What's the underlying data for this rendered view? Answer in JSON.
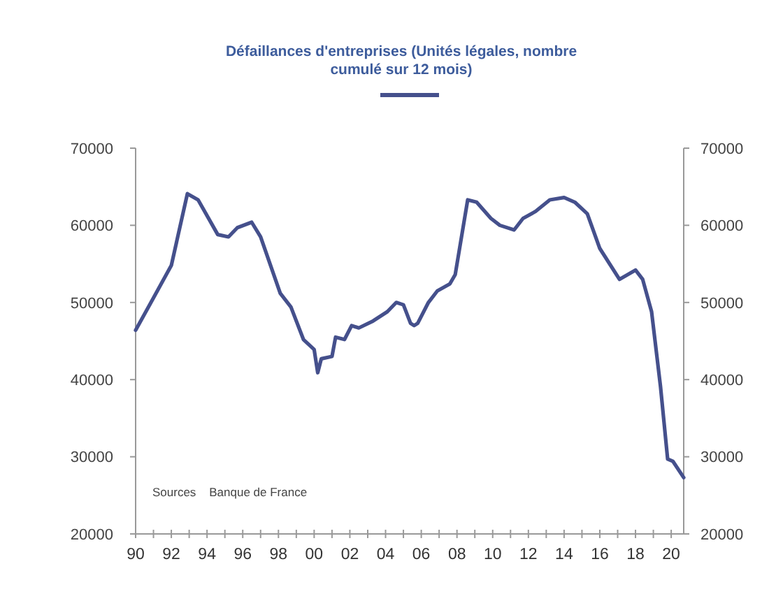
{
  "chart_data": {
    "type": "line",
    "title": "Défaillances  d'entreprises (Unités légales, nombre cumulé  sur 12 mois)",
    "annotations": [
      "Sources    Banque de France"
    ],
    "grid": false,
    "series": [
      {
        "color": "#45508c",
        "x": [
          1990,
          1991,
          1992,
          1992.9,
          1993.5,
          1994.6,
          1995.2,
          1995.7,
          1996.5,
          1997,
          1998.1,
          1998.7,
          1999.4,
          2000,
          2000.2,
          2000.4,
          2001,
          2001.2,
          2001.7,
          2002.1,
          2002.5,
          2003.3,
          2004.1,
          2004.6,
          2005,
          2005.4,
          2005.6,
          2005.8,
          2006.4,
          2006.9,
          2007.6,
          2007.9,
          2008.6,
          2009.1,
          2009.9,
          2010.4,
          2011.2,
          2011.7,
          2012.4,
          2013.2,
          2014,
          2014.6,
          2015.3,
          2016,
          2017.1,
          2018,
          2018.4,
          2018.9,
          2019.4,
          2019.8,
          2020.1,
          2020.7
        ],
        "values": [
          46400,
          50600,
          54800,
          64100,
          63300,
          58800,
          58500,
          59700,
          60400,
          58500,
          51200,
          49400,
          45200,
          43900,
          40900,
          42700,
          43000,
          45500,
          45200,
          47000,
          46700,
          47600,
          48800,
          50000,
          49700,
          47300,
          47000,
          47300,
          50000,
          51500,
          52400,
          53600,
          63300,
          63000,
          60900,
          60000,
          59400,
          60900,
          61800,
          63300,
          63600,
          63000,
          61500,
          57000,
          53000,
          54200,
          53000,
          48800,
          39100,
          29700,
          29400,
          27300
        ]
      }
    ],
    "xlim": [
      1990,
      2020.7
    ],
    "xticks": [
      {
        "value": 1990,
        "label": "90"
      },
      {
        "value": 1991,
        "label": null
      },
      {
        "value": 1992,
        "label": "92"
      },
      {
        "value": 1993,
        "label": null
      },
      {
        "value": 1994,
        "label": "94"
      },
      {
        "value": 1995,
        "label": null
      },
      {
        "value": 1996,
        "label": "96"
      },
      {
        "value": 1997,
        "label": null
      },
      {
        "value": 1998,
        "label": "98"
      },
      {
        "value": 1999,
        "label": null
      },
      {
        "value": 2000,
        "label": "00"
      },
      {
        "value": 2001,
        "label": null
      },
      {
        "value": 2002,
        "label": "02"
      },
      {
        "value": 2003,
        "label": null
      },
      {
        "value": 2004,
        "label": "04"
      },
      {
        "value": 2005,
        "label": null
      },
      {
        "value": 2006,
        "label": "06"
      },
      {
        "value": 2007,
        "label": null
      },
      {
        "value": 2008,
        "label": "08"
      },
      {
        "value": 2009,
        "label": null
      },
      {
        "value": 2010,
        "label": "10"
      },
      {
        "value": 2011,
        "label": null
      },
      {
        "value": 2012,
        "label": "12"
      },
      {
        "value": 2013,
        "label": null
      },
      {
        "value": 2014,
        "label": "14"
      },
      {
        "value": 2015,
        "label": null
      },
      {
        "value": 2016,
        "label": "16"
      },
      {
        "value": 2017,
        "label": null
      },
      {
        "value": 2018,
        "label": "18"
      },
      {
        "value": 2019,
        "label": null
      },
      {
        "value": 2020,
        "label": "20"
      }
    ],
    "ylim": [
      20000,
      70000
    ],
    "yticks": [
      20000,
      30000,
      40000,
      50000,
      60000,
      70000
    ],
    "y2lim": [
      20000,
      70000
    ],
    "y2ticks": [
      20000,
      30000,
      40000,
      50000,
      60000,
      70000
    ]
  }
}
